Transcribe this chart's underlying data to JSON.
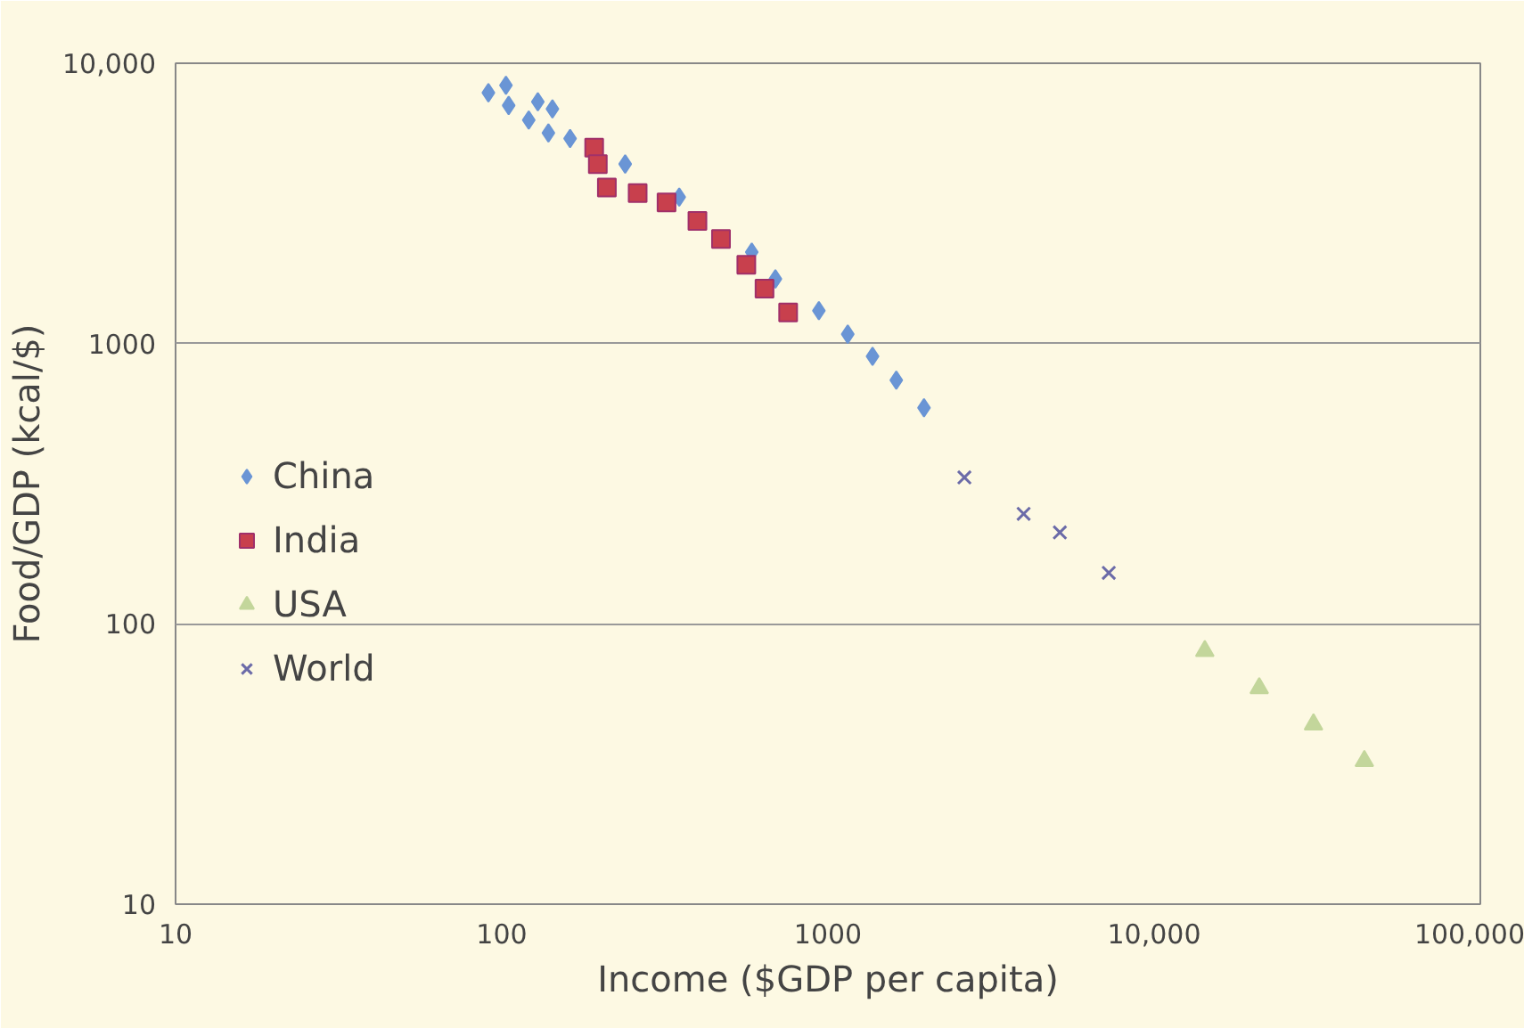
{
  "chart_data": {
    "type": "scatter",
    "xlabel": "Income ($GDP per capita)",
    "ylabel": "Food/GDP (kcal/$)",
    "log": "xy",
    "xlim": [
      10,
      100000
    ],
    "ylim": [
      10,
      10000
    ],
    "xticks": [
      10,
      100,
      1000,
      {
        "value": 10000,
        "label": "10,000"
      },
      {
        "value": 100000,
        "label": "100,000"
      }
    ],
    "yticks": [
      10,
      100,
      1000,
      {
        "value": 10000,
        "label": "10,000"
      }
    ],
    "grid": "y",
    "legend": "left",
    "series": [
      {
        "name": "China",
        "color": "#6a95d5",
        "marker": "diamond",
        "x": [
          91,
          103,
          105,
          129,
          143,
          121,
          139,
          162,
          185,
          239,
          350,
          495,
          584,
          690,
          938,
          1150,
          1370,
          1620,
          1970
        ],
        "values": [
          7850,
          8340,
          7070,
          7290,
          6870,
          6270,
          5640,
          5390,
          null,
          4370,
          3330,
          null,
          2120,
          1700,
          1310,
          1080,
          900,
          740,
          590
        ]
      },
      {
        "name": "India",
        "color": "#c8404d",
        "marker": "square",
        "x": [
          192,
          197,
          210,
          261,
          320,
          398,
          470,
          562,
          639,
          755
        ],
        "values": [
          5000,
          4370,
          3600,
          3440,
          3190,
          2740,
          2360,
          1910,
          1570,
          1290
        ]
      },
      {
        "name": "USA",
        "color": "#c3d69b",
        "marker": "triangle",
        "x": [
          14300,
          21000,
          30800,
          44100
        ],
        "values": [
          80,
          59,
          43.8,
          32.4
        ]
      },
      {
        "name": "World",
        "color": "#6b6ba8",
        "marker": "cross",
        "x": [
          2620,
          3980,
          5140,
          7260
        ],
        "values": [
          333,
          247,
          212,
          152
        ]
      }
    ]
  }
}
